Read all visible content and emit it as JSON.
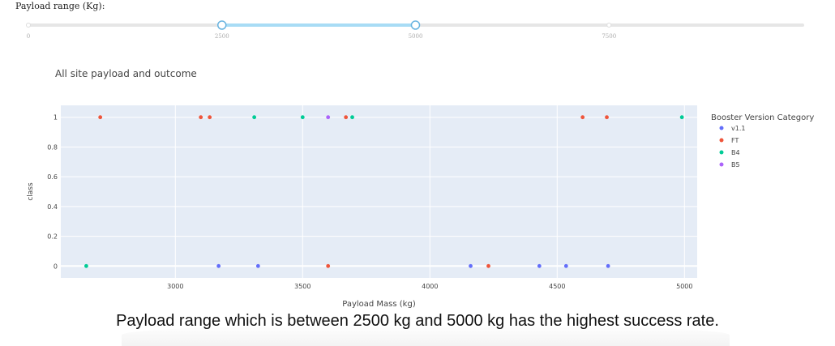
{
  "slider": {
    "label": "Payload range (Kg):",
    "min": 0,
    "max": 10000,
    "range": [
      2500,
      5000
    ],
    "ticks": [
      "0",
      "2500",
      "5000",
      "7500"
    ],
    "tick_values": [
      0,
      2500,
      5000,
      7500
    ],
    "track_color": "#e6e6e6",
    "selected_color": "#a8dcf5",
    "handle_color": "#69b4e0"
  },
  "chart_data": {
    "type": "scatter",
    "title": "All site payload and outcome",
    "xlabel": "Payload Mass (kg)",
    "ylabel": "class",
    "xlim": [
      2550,
      5050
    ],
    "ylim": [
      -0.08,
      1.08
    ],
    "x_ticks": [
      3000,
      3500,
      4000,
      4500,
      5000
    ],
    "y_ticks": [
      0,
      0.2,
      0.4,
      0.6,
      0.8,
      1
    ],
    "y_tick_labels": [
      "0",
      "0.2",
      "0.4",
      "0.6",
      "0.8",
      "1"
    ],
    "grid": true,
    "legend_title": "Booster Version Category",
    "legend_position": "right",
    "series": [
      {
        "name": "v1.1",
        "color": "#636efa",
        "points": [
          [
            3170,
            0
          ],
          [
            3325,
            0
          ],
          [
            4160,
            0
          ],
          [
            4430,
            0
          ],
          [
            4535,
            0
          ],
          [
            4700,
            0
          ]
        ]
      },
      {
        "name": "FT",
        "color": "#ef553b",
        "points": [
          [
            2705,
            1
          ],
          [
            3100,
            1
          ],
          [
            3135,
            1
          ],
          [
            3600,
            0
          ],
          [
            3670,
            1
          ],
          [
            4230,
            0
          ],
          [
            4600,
            1
          ],
          [
            4695,
            1
          ]
        ]
      },
      {
        "name": "B4",
        "color": "#00cc96",
        "points": [
          [
            2650,
            0
          ],
          [
            3310,
            1
          ],
          [
            3500,
            1
          ],
          [
            3695,
            1
          ],
          [
            4990,
            1
          ]
        ]
      },
      {
        "name": "B5",
        "color": "#ab63fa",
        "points": [
          [
            3600,
            1
          ]
        ]
      }
    ]
  },
  "caption": "Payload range which is between 2500 kg and 5000 kg has the highest success rate."
}
